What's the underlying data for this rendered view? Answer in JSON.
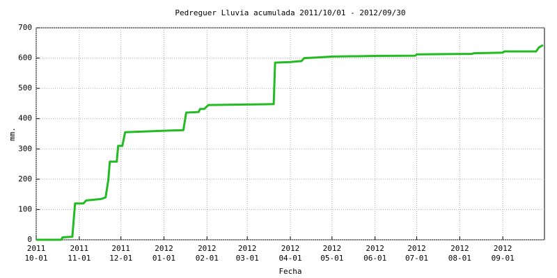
{
  "chart_data": {
    "type": "line",
    "title": "Pedreguer Lluvia acumulada 2011/10/01 - 2012/09/30",
    "x_label": "Fecha",
    "y_label": "mm.",
    "color": "#22bb22",
    "grid": true,
    "x": [
      "2011-10-01",
      "2011-10-19",
      "2011-10-20",
      "2011-10-27",
      "2011-10-29",
      "2011-11-04",
      "2011-11-06",
      "2011-11-17",
      "2011-11-20",
      "2011-11-22",
      "2011-11-23",
      "2011-11-28",
      "2011-11-29",
      "2011-12-02",
      "2011-12-04",
      "2012-01-01",
      "2012-01-15",
      "2012-01-17",
      "2012-01-26",
      "2012-01-27",
      "2012-01-30",
      "2012-02-02",
      "2012-03-20",
      "2012-03-21",
      "2012-04-01",
      "2012-04-09",
      "2012-04-11",
      "2012-04-20",
      "2012-05-01",
      "2012-06-01",
      "2012-06-30",
      "2012-07-01",
      "2012-08-10",
      "2012-08-11",
      "2012-09-01",
      "2012-09-02",
      "2012-09-25",
      "2012-09-27",
      "2012-09-30"
    ],
    "values": [
      0,
      0,
      8,
      10,
      120,
      120,
      130,
      135,
      140,
      200,
      258,
      258,
      310,
      310,
      355,
      360,
      362,
      420,
      422,
      432,
      432,
      445,
      448,
      585,
      587,
      590,
      600,
      602,
      605,
      607,
      608,
      612,
      614,
      616,
      618,
      622,
      622,
      635,
      643
    ],
    "xlim": [
      "2011-10-01",
      "2012-10-01"
    ],
    "xticks": [
      {
        "value": "2011-10-01",
        "label": [
          "2011",
          "10-01"
        ]
      },
      {
        "value": "2011-11-01",
        "label": [
          "2011",
          "11-01"
        ]
      },
      {
        "value": "2011-12-01",
        "label": [
          "2011",
          "12-01"
        ]
      },
      {
        "value": "2012-01-01",
        "label": [
          "2012",
          "01-01"
        ]
      },
      {
        "value": "2012-02-01",
        "label": [
          "2012",
          "02-01"
        ]
      },
      {
        "value": "2012-03-01",
        "label": [
          "2012",
          "03-01"
        ]
      },
      {
        "value": "2012-04-01",
        "label": [
          "2012",
          "04-01"
        ]
      },
      {
        "value": "2012-05-01",
        "label": [
          "2012",
          "05-01"
        ]
      },
      {
        "value": "2012-06-01",
        "label": [
          "2012",
          "06-01"
        ]
      },
      {
        "value": "2012-07-01",
        "label": [
          "2012",
          "07-01"
        ]
      },
      {
        "value": "2012-08-01",
        "label": [
          "2012",
          "08-01"
        ]
      },
      {
        "value": "2012-09-01",
        "label": [
          "2012",
          "09-01"
        ]
      }
    ],
    "ylim": [
      0,
      700
    ],
    "yticks": [
      0,
      100,
      200,
      300,
      400,
      500,
      600,
      700
    ]
  }
}
